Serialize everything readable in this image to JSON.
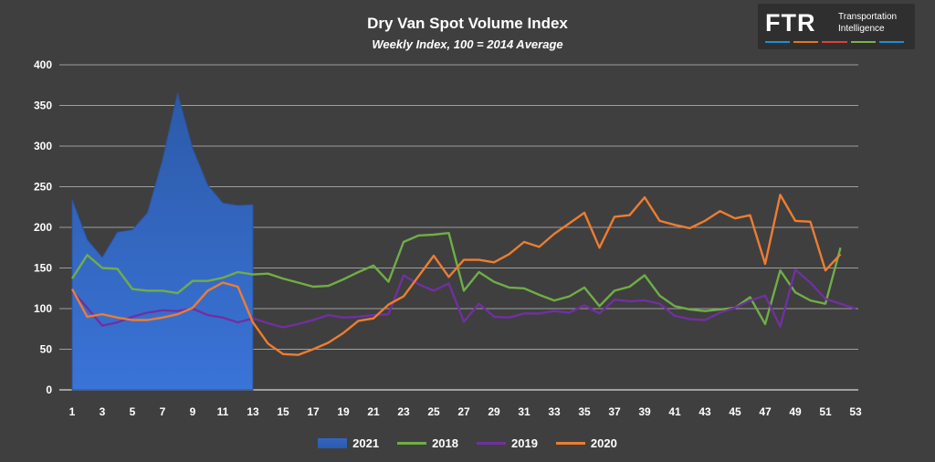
{
  "header": {
    "title": "Dry Van Spot Volume Index",
    "subtitle": "Weekly Index, 100 = 2014 Average"
  },
  "logo": {
    "mark": "FTR",
    "line1": "Transportation",
    "line2": "Intelligence",
    "bar_colors": [
      "#1f8dd6",
      "#e8751a",
      "#d9413a",
      "#7bb342",
      "#1f8dd6"
    ]
  },
  "chart_data": {
    "type": "line",
    "title": "Dry Van Spot Volume Index",
    "subtitle": "Weekly Index, 100 = 2014 Average",
    "xlim": [
      1,
      53
    ],
    "ylim": [
      0,
      400
    ],
    "yticks": [
      0,
      50,
      100,
      150,
      200,
      250,
      300,
      350,
      400
    ],
    "xticks": [
      1,
      3,
      5,
      7,
      9,
      11,
      13,
      15,
      17,
      19,
      21,
      23,
      25,
      27,
      29,
      31,
      33,
      35,
      37,
      39,
      41,
      43,
      45,
      47,
      49,
      51,
      53
    ],
    "grid": "horizontal",
    "legend_position": "bottom",
    "series": [
      {
        "name": "2021",
        "type": "area",
        "color": "#3466bf",
        "x": [
          1,
          2,
          3,
          4,
          5,
          6,
          7,
          8,
          9,
          10,
          11,
          12,
          13
        ],
        "values": [
          234,
          185,
          163,
          194,
          197,
          218,
          283,
          365,
          297,
          252,
          230,
          227,
          228
        ]
      },
      {
        "name": "2018",
        "type": "line",
        "color": "#70ad47",
        "x": [
          1,
          2,
          3,
          4,
          5,
          6,
          7,
          8,
          9,
          10,
          11,
          12,
          13,
          14,
          15,
          16,
          17,
          18,
          19,
          20,
          21,
          22,
          23,
          24,
          25,
          26,
          27,
          28,
          29,
          30,
          31,
          32,
          33,
          34,
          35,
          36,
          37,
          38,
          39,
          40,
          41,
          42,
          43,
          44,
          45,
          46,
          47,
          48,
          49,
          50,
          51,
          52
        ],
        "values": [
          137,
          166,
          150,
          149,
          124,
          122,
          122,
          119,
          134,
          134,
          138,
          145,
          142,
          143,
          137,
          132,
          127,
          128,
          136,
          145,
          153,
          133,
          182,
          190,
          191,
          193,
          122,
          145,
          133,
          126,
          125,
          117,
          110,
          115,
          126,
          103,
          122,
          127,
          141,
          116,
          103,
          99,
          97,
          99,
          101,
          114,
          81,
          147,
          120,
          110,
          106,
          175
        ]
      },
      {
        "name": "2019",
        "type": "line",
        "color": "#7030a0",
        "x": [
          1,
          2,
          3,
          4,
          5,
          6,
          7,
          8,
          9,
          10,
          11,
          12,
          13,
          14,
          15,
          16,
          17,
          18,
          19,
          20,
          21,
          22,
          23,
          24,
          25,
          26,
          27,
          28,
          29,
          30,
          31,
          32,
          33,
          34,
          35,
          36,
          37,
          38,
          39,
          40,
          41,
          42,
          43,
          44,
          45,
          46,
          47,
          48,
          49,
          50,
          51,
          52,
          53
        ],
        "values": [
          122,
          101,
          79,
          83,
          90,
          95,
          98,
          97,
          100,
          92,
          89,
          83,
          88,
          82,
          77,
          81,
          86,
          92,
          89,
          90,
          92,
          93,
          141,
          130,
          122,
          131,
          84,
          106,
          90,
          89,
          94,
          94,
          97,
          95,
          104,
          94,
          111,
          109,
          110,
          106,
          91,
          87,
          86,
          95,
          101,
          110,
          116,
          78,
          148,
          132,
          112,
          106,
          100
        ]
      },
      {
        "name": "2020",
        "type": "line",
        "color": "#ed7d31",
        "x": [
          1,
          2,
          3,
          4,
          5,
          6,
          7,
          8,
          9,
          10,
          11,
          12,
          13,
          14,
          15,
          16,
          17,
          18,
          19,
          20,
          21,
          22,
          23,
          24,
          25,
          26,
          27,
          28,
          29,
          30,
          31,
          32,
          33,
          34,
          35,
          36,
          37,
          38,
          39,
          40,
          41,
          42,
          43,
          44,
          45,
          46,
          47,
          48,
          49,
          50,
          51,
          52
        ],
        "values": [
          124,
          90,
          93,
          89,
          86,
          86,
          89,
          93,
          101,
          122,
          132,
          127,
          83,
          57,
          44,
          43,
          50,
          58,
          70,
          85,
          88,
          105,
          115,
          140,
          165,
          139,
          160,
          160,
          157,
          167,
          182,
          176,
          192,
          205,
          218,
          175,
          213,
          215,
          237,
          208,
          203,
          199,
          208,
          220,
          211,
          215,
          155,
          240,
          208,
          207,
          147,
          167
        ]
      }
    ]
  }
}
